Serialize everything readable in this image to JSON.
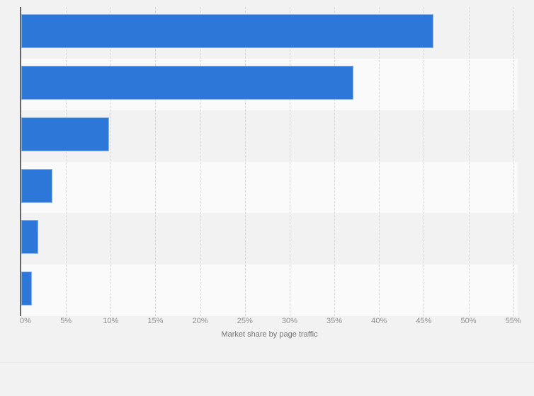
{
  "chart_data": {
    "type": "bar",
    "orientation": "horizontal",
    "title": "",
    "xlabel": "Market share by page traffic",
    "ylabel": "",
    "categories": [
      "",
      "",
      "",
      "",
      "",
      ""
    ],
    "values": [
      46.1,
      37.1,
      9.8,
      3.5,
      1.9,
      1.2
    ],
    "value_unit": "%",
    "xlim": [
      0,
      55.5
    ],
    "x_ticks": [
      {
        "value": 0,
        "label": "0%"
      },
      {
        "value": 5,
        "label": "5%"
      },
      {
        "value": 10,
        "label": "10%"
      },
      {
        "value": 15,
        "label": "15%"
      },
      {
        "value": 20,
        "label": "20%"
      },
      {
        "value": 25,
        "label": "25%"
      },
      {
        "value": 30,
        "label": "30%"
      },
      {
        "value": 35,
        "label": "35%"
      },
      {
        "value": 40,
        "label": "40%"
      },
      {
        "value": 45,
        "label": "45%"
      },
      {
        "value": 50,
        "label": "50%"
      },
      {
        "value": 55,
        "label": "55%"
      }
    ],
    "grid": true,
    "legend": "none",
    "band_pattern": "alternating"
  },
  "colors": {
    "background": "#f2f2f2",
    "band_base": "#f2f2f2",
    "band_alt": "#fafafa",
    "bar_fill": "#2c77d8",
    "bar_border": "rgba(255,255,255,0.45)",
    "gridline": "#d6d6d6",
    "axis_line": "#666666",
    "tick_label": "#8e8e8e",
    "axis_title": "#757575",
    "footer_divider": "#eaeaea"
  }
}
